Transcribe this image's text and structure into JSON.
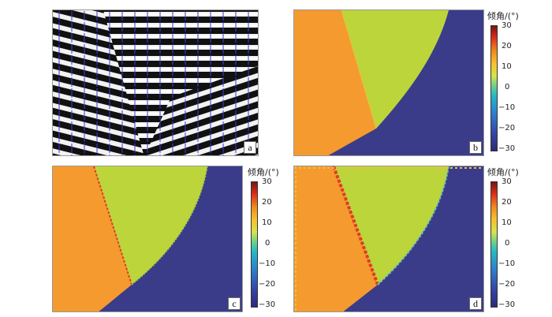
{
  "panels": {
    "a": {
      "tag": "a"
    },
    "b": {
      "tag": "b"
    },
    "c": {
      "tag": "c"
    },
    "d": {
      "tag": "d"
    }
  },
  "colorbar": {
    "title": "倾角/(°)",
    "ticks": [
      "30",
      "20",
      "10",
      "0",
      "−10",
      "−20",
      "−30"
    ]
  },
  "colors": {
    "orange": "#f59a2e",
    "green": "#bcd53a",
    "navy": "#3a3c8a",
    "red": "#e43a24",
    "stripe_dark": "#111111",
    "stripe_light": "#ffffff",
    "vector": "#3d3dd6"
  }
}
